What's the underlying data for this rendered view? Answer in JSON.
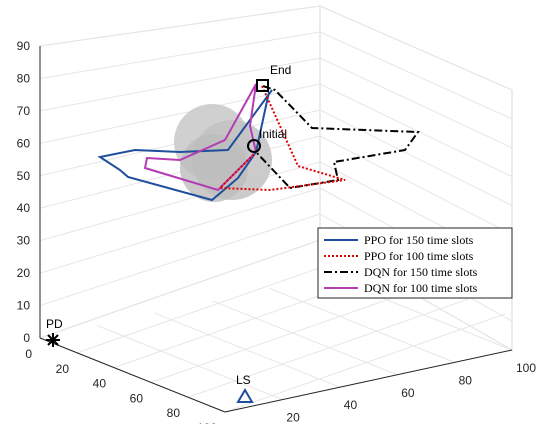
{
  "chart_data": {
    "type": "line3d",
    "zlim": [
      0,
      90
    ],
    "z_ticks": [
      "0",
      "10",
      "20",
      "30",
      "40",
      "50",
      "60",
      "70",
      "80",
      "90"
    ],
    "x_ticks": [
      "0",
      "20",
      "40",
      "60",
      "80",
      "100"
    ],
    "y_ticks": [
      "0",
      "20",
      "40",
      "60",
      "80",
      "100"
    ],
    "grid": true,
    "legend_position": "right",
    "annotations": {
      "end": "End",
      "initial": "Initial",
      "pd": "PD",
      "ls": "LS"
    },
    "series": [
      {
        "name": "PPO for 150 time slots",
        "color": "#1f4e9c",
        "style": "solid"
      },
      {
        "name": "PPO for 100 time slots",
        "color": "#e00000",
        "style": "dotted"
      },
      {
        "name": "DQN for 150 time slots",
        "color": "#000000",
        "style": "dashdot"
      },
      {
        "name": "DQN for 100 time slots",
        "color": "#b33cb3",
        "style": "solid"
      }
    ]
  }
}
